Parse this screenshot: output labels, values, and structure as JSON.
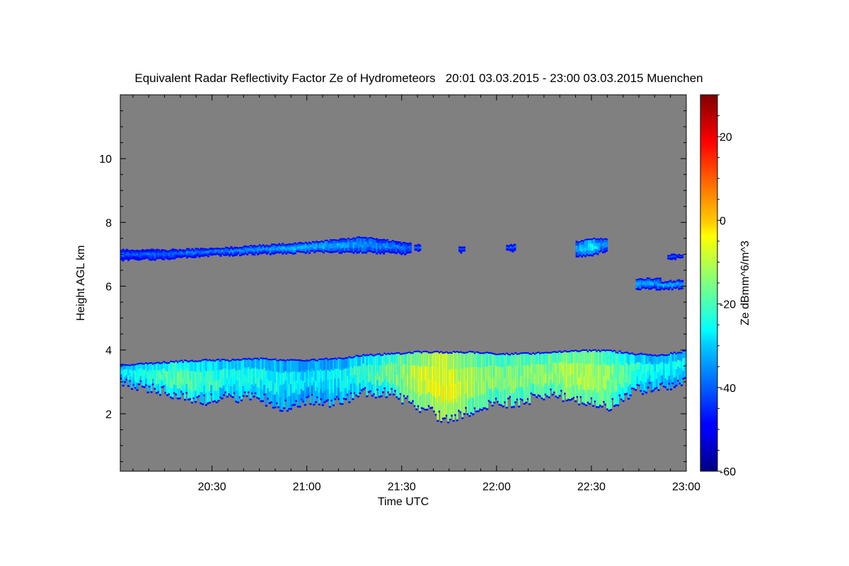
{
  "chart_data": {
    "type": "heatmap",
    "title": "Equivalent Radar Reflectivity Factor Ze of Hydrometeors   20:01 03.03.2015 - 23:00 03.03.2015 Muenchen",
    "xlabel": "Time UTC",
    "ylabel": "Height AGL km",
    "colorbar_label": "Ze dBmm^6/m^3",
    "xlim": [
      "20:01",
      "23:00"
    ],
    "ylim": [
      0.2,
      12.0
    ],
    "clim": [
      -60,
      30
    ],
    "x_ticks": [
      "20:30",
      "21:00",
      "21:30",
      "22:00",
      "22:30",
      "23:00"
    ],
    "y_ticks": [
      2,
      4,
      6,
      8,
      10
    ],
    "colorbar_ticks": [
      -60,
      -40,
      -20,
      0,
      20
    ],
    "background_color": "#808080",
    "colormap": "jet",
    "grid": false,
    "echo_layers": [
      {
        "name": "upper",
        "segments": [
          {
            "start": "20:01",
            "end": "21:32",
            "base_km": [
              6.8,
              6.85,
              6.95,
              7.0,
              7.05,
              7.05,
              7.0
            ],
            "top_km": [
              7.15,
              7.15,
              7.2,
              7.3,
              7.4,
              7.55,
              7.35
            ],
            "ze_dbz": [
              -45,
              -43,
              -40,
              -38,
              -35,
              -38,
              -42
            ]
          },
          {
            "start": "21:34",
            "end": "21:35",
            "base_km": [
              7.1
            ],
            "top_km": [
              7.3
            ],
            "ze_dbz": [
              -42
            ]
          },
          {
            "start": "21:48",
            "end": "21:49",
            "base_km": [
              7.05
            ],
            "top_km": [
              7.25
            ],
            "ze_dbz": [
              -44
            ]
          },
          {
            "start": "22:03",
            "end": "22:05",
            "base_km": [
              7.1
            ],
            "top_km": [
              7.3
            ],
            "ze_dbz": [
              -42
            ]
          },
          {
            "start": "22:25",
            "end": "22:34",
            "base_km": [
              6.9,
              6.95,
              7.1
            ],
            "top_km": [
              7.4,
              7.5,
              7.5
            ],
            "ze_dbz": [
              -38,
              -30,
              -40
            ]
          },
          {
            "start": "22:44",
            "end": "22:51",
            "base_km": [
              5.9,
              5.9
            ],
            "top_km": [
              6.25,
              6.25
            ],
            "ze_dbz": [
              -36,
              -38
            ]
          },
          {
            "start": "22:52",
            "end": "22:58",
            "base_km": [
              5.9,
              5.9
            ],
            "top_km": [
              6.15,
              6.2
            ],
            "ze_dbz": [
              -35,
              -38
            ]
          },
          {
            "start": "22:54",
            "end": "22:58",
            "base_km": [
              6.85
            ],
            "top_km": [
              7.0
            ],
            "ze_dbz": [
              -42
            ]
          }
        ]
      },
      {
        "name": "lower",
        "segments": [
          {
            "start": "20:01",
            "end": "23:00",
            "base_km": [
              3.0,
              2.75,
              2.6,
              2.4,
              2.5,
              2.5,
              2.2,
              2.4,
              2.35,
              2.65,
              2.6,
              2.2,
              1.8,
              2.1,
              2.3,
              2.4,
              2.6,
              2.35,
              2.2,
              2.7,
              2.85,
              2.95
            ],
            "top_km": [
              3.55,
              3.6,
              3.65,
              3.7,
              3.7,
              3.75,
              3.7,
              3.7,
              3.75,
              3.85,
              3.9,
              3.95,
              3.95,
              3.95,
              3.9,
              3.9,
              3.95,
              4.0,
              4.0,
              3.9,
              3.85,
              4.0
            ],
            "ze_dbz": [
              -32,
              -26,
              -22,
              -25,
              -27,
              -28,
              -30,
              -31,
              -30,
              -25,
              -20,
              -12,
              -8,
              -16,
              -18,
              -18,
              -16,
              -14,
              -17,
              -26,
              -30,
              -30
            ]
          }
        ]
      }
    ]
  }
}
